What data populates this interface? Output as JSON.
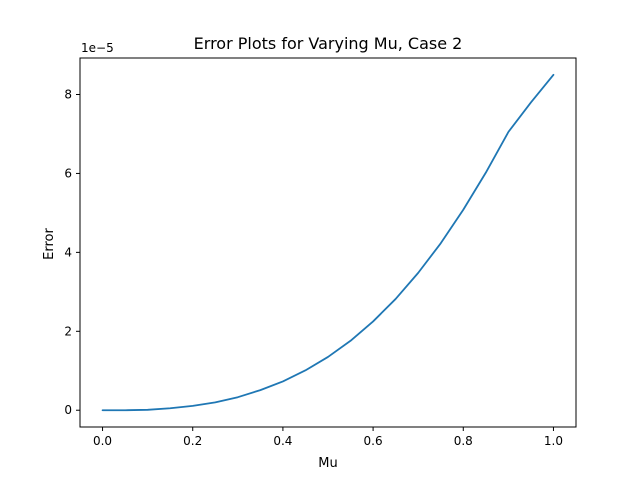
{
  "chart_data": {
    "type": "line",
    "title": "Error Plots for Varying Mu, Case 2",
    "xlabel": "Mu",
    "ylabel": "Error",
    "y_offset_label": "1e−5",
    "y_scale": 1e-05,
    "xlim": [
      -0.05,
      1.05
    ],
    "ylim": [
      -0.425,
      8.925
    ],
    "x_ticks": [
      0.0,
      0.2,
      0.4,
      0.6,
      0.8,
      1.0
    ],
    "x_tick_labels": [
      "0.0",
      "0.2",
      "0.4",
      "0.6",
      "0.8",
      "1.0"
    ],
    "y_ticks": [
      0,
      2,
      4,
      6,
      8
    ],
    "y_tick_labels": [
      "0",
      "2",
      "4",
      "6",
      "8"
    ],
    "grid": false,
    "legend": null,
    "series": [
      {
        "color": "#1f77b4",
        "x": [
          0.0,
          0.05,
          0.1,
          0.15,
          0.2,
          0.25,
          0.3,
          0.35,
          0.4,
          0.45,
          0.5,
          0.55,
          0.6,
          0.65,
          0.7,
          0.75,
          0.8,
          0.85,
          0.9,
          0.95,
          1.0
        ],
        "y": [
          0.0,
          0.0,
          0.01,
          0.05,
          0.11,
          0.2,
          0.33,
          0.51,
          0.73,
          1.01,
          1.35,
          1.76,
          2.25,
          2.82,
          3.48,
          4.23,
          5.08,
          6.02,
          7.05,
          7.8,
          8.5
        ]
      }
    ]
  }
}
